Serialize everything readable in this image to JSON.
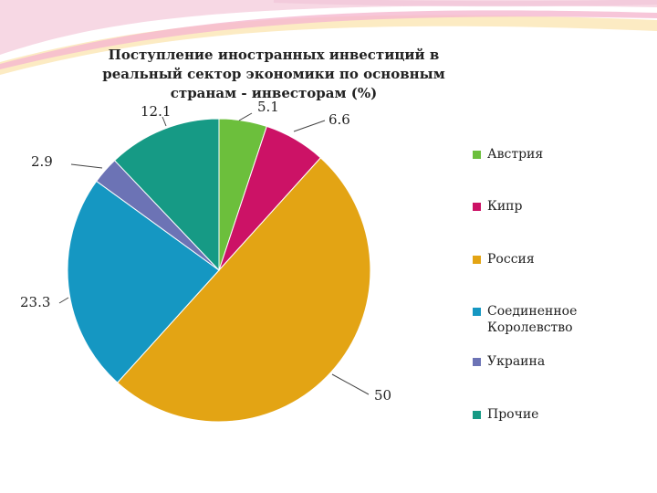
{
  "chart_data": {
    "type": "pie",
    "title": "Поступление иностранных инвестиций в реальный сектор экономики по основным странам - инвесторам (%)",
    "categories": [
      "Австрия",
      "Кипр",
      "Россия",
      "Соединенное Королевство",
      "Украина",
      "Прочие"
    ],
    "values": [
      5.1,
      6.6,
      50,
      23.3,
      2.9,
      12.1
    ],
    "data_labels": [
      "5.1",
      "6.6",
      "50",
      "23.3",
      "2.9",
      "12.1"
    ],
    "colors": [
      "#6cbf3c",
      "#cc1266",
      "#e3a414",
      "#1597c2",
      "#6c73b5",
      "#169a85"
    ],
    "legend": {
      "position": "right"
    }
  }
}
